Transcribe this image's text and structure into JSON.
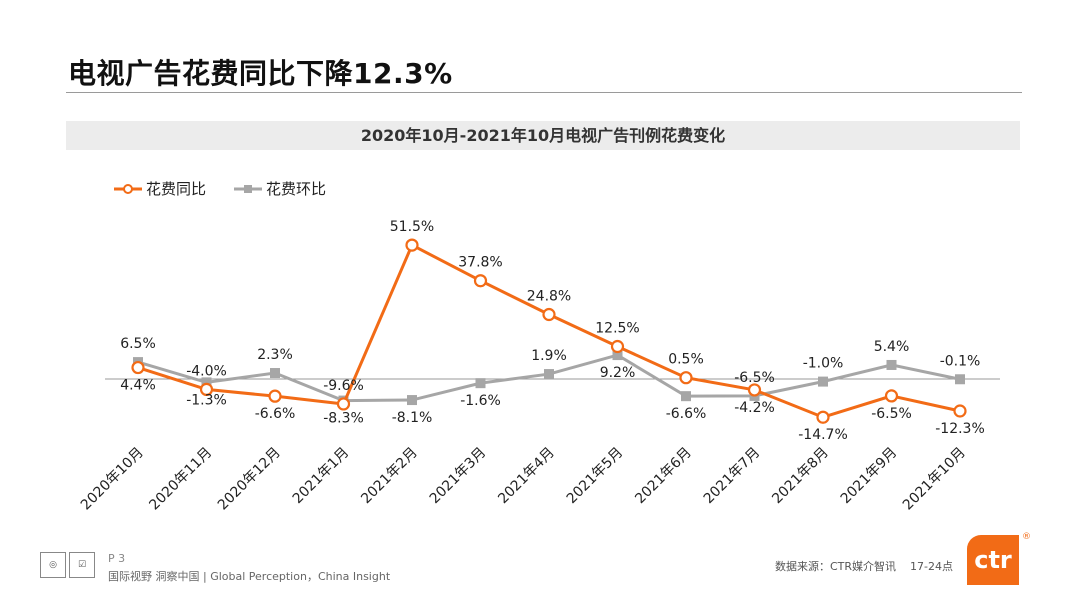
{
  "slide": {
    "title": "电视广告花费同比下降12.3%"
  },
  "footer": {
    "page": "P 3",
    "slogan": "国际视野  洞察中国 | Global Perception，China Insight",
    "source": "数据来源：CTR媒介智讯",
    "pages": "17-24点",
    "logo_text": "ctr",
    "logo_reg": "®",
    "colors": {
      "brand": "#f26b16"
    }
  },
  "chart_data": {
    "type": "line",
    "title": "2020年10月-2021年10月电视广告刊例花费变化",
    "categories": [
      "2020年10月",
      "2020年11月",
      "2020年12月",
      "2021年1月",
      "2021年2月",
      "2021年3月",
      "2021年4月",
      "2021年5月",
      "2021年6月",
      "2021年7月",
      "2021年8月",
      "2021年9月",
      "2021年10月"
    ],
    "series": [
      {
        "name": "花费同比",
        "color": "#f26b16",
        "marker": "circle",
        "values": [
          4.4,
          -4.0,
          -6.6,
          -9.6,
          51.5,
          37.8,
          24.8,
          12.5,
          0.5,
          -4.2,
          -14.7,
          -6.5,
          -12.3
        ],
        "labels": [
          "4.4%",
          "-4.0%",
          "-6.6%",
          "-9.6%",
          "51.5%",
          "37.8%",
          "24.8%",
          "12.5%",
          "0.5%",
          "-4.2%",
          "-14.7%",
          "-6.5%",
          "-12.3%"
        ]
      },
      {
        "name": "花费环比",
        "color": "#a6a6a6",
        "marker": "square",
        "values": [
          6.5,
          -1.3,
          2.3,
          -8.3,
          -8.1,
          -1.6,
          1.9,
          9.2,
          -6.6,
          -6.5,
          -1.0,
          5.4,
          -0.1
        ],
        "labels": [
          "6.5%",
          "-1.3%",
          "2.3%",
          "-8.3%",
          "-8.1%",
          "-1.6%",
          "1.9%",
          "9.2%",
          "-6.6%",
          "-6.5%",
          "-1.0%",
          "5.4%",
          "-0.1%"
        ]
      }
    ],
    "legend_position": "top-left",
    "grid": false
  }
}
